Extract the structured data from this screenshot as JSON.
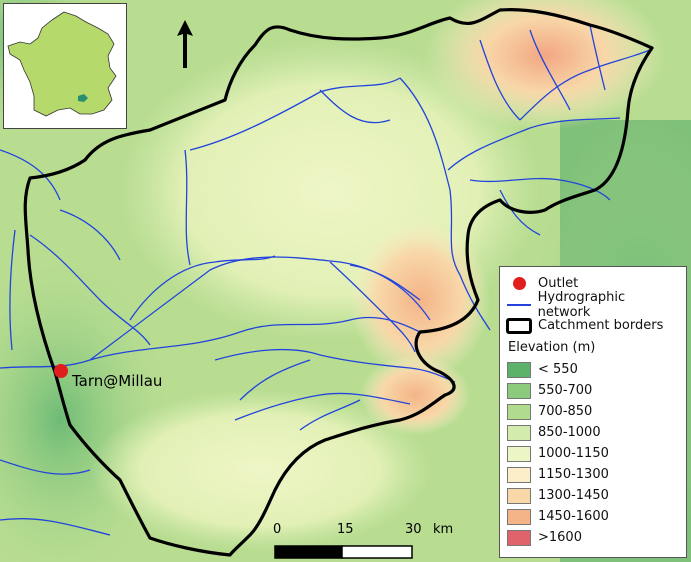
{
  "legend": {
    "items": [
      {
        "label": "Outlet",
        "symbol": "outlet-dot-icon",
        "color": "#e01e1e"
      },
      {
        "label": "Hydrographic network",
        "symbol": "river-line-icon",
        "color": "#2244dd"
      },
      {
        "label": "Catchment borders",
        "symbol": "border-box-icon",
        "color": "#000000"
      }
    ],
    "elevation_title": "Elevation (m)",
    "elevation_classes": [
      {
        "label": "< 550",
        "color": "#5db26a"
      },
      {
        "label": "550-700",
        "color": "#8ccb7c"
      },
      {
        "label": "700-850",
        "color": "#b1dc8d"
      },
      {
        "label": "850-1000",
        "color": "#d3ebad"
      },
      {
        "label": "1000-1150",
        "color": "#ecf5c4"
      },
      {
        "label": "1150-1300",
        "color": "#fbeec8"
      },
      {
        "label": "1300-1450",
        "color": "#f8d7a8"
      },
      {
        "label": "1450-1600",
        "color": "#f4b487"
      },
      {
        "label": ">1600",
        "color": "#e0636b"
      }
    ]
  },
  "outlet": {
    "label": "Tarn@Millau"
  },
  "scalebar": {
    "ticks": [
      "0",
      "15",
      "30"
    ],
    "unit": "km"
  },
  "inset": {
    "country_color": "#b5d96b",
    "catchment_color": "#2a8f6e"
  },
  "north_arrow": {
    "icon": "north-arrow-icon"
  }
}
